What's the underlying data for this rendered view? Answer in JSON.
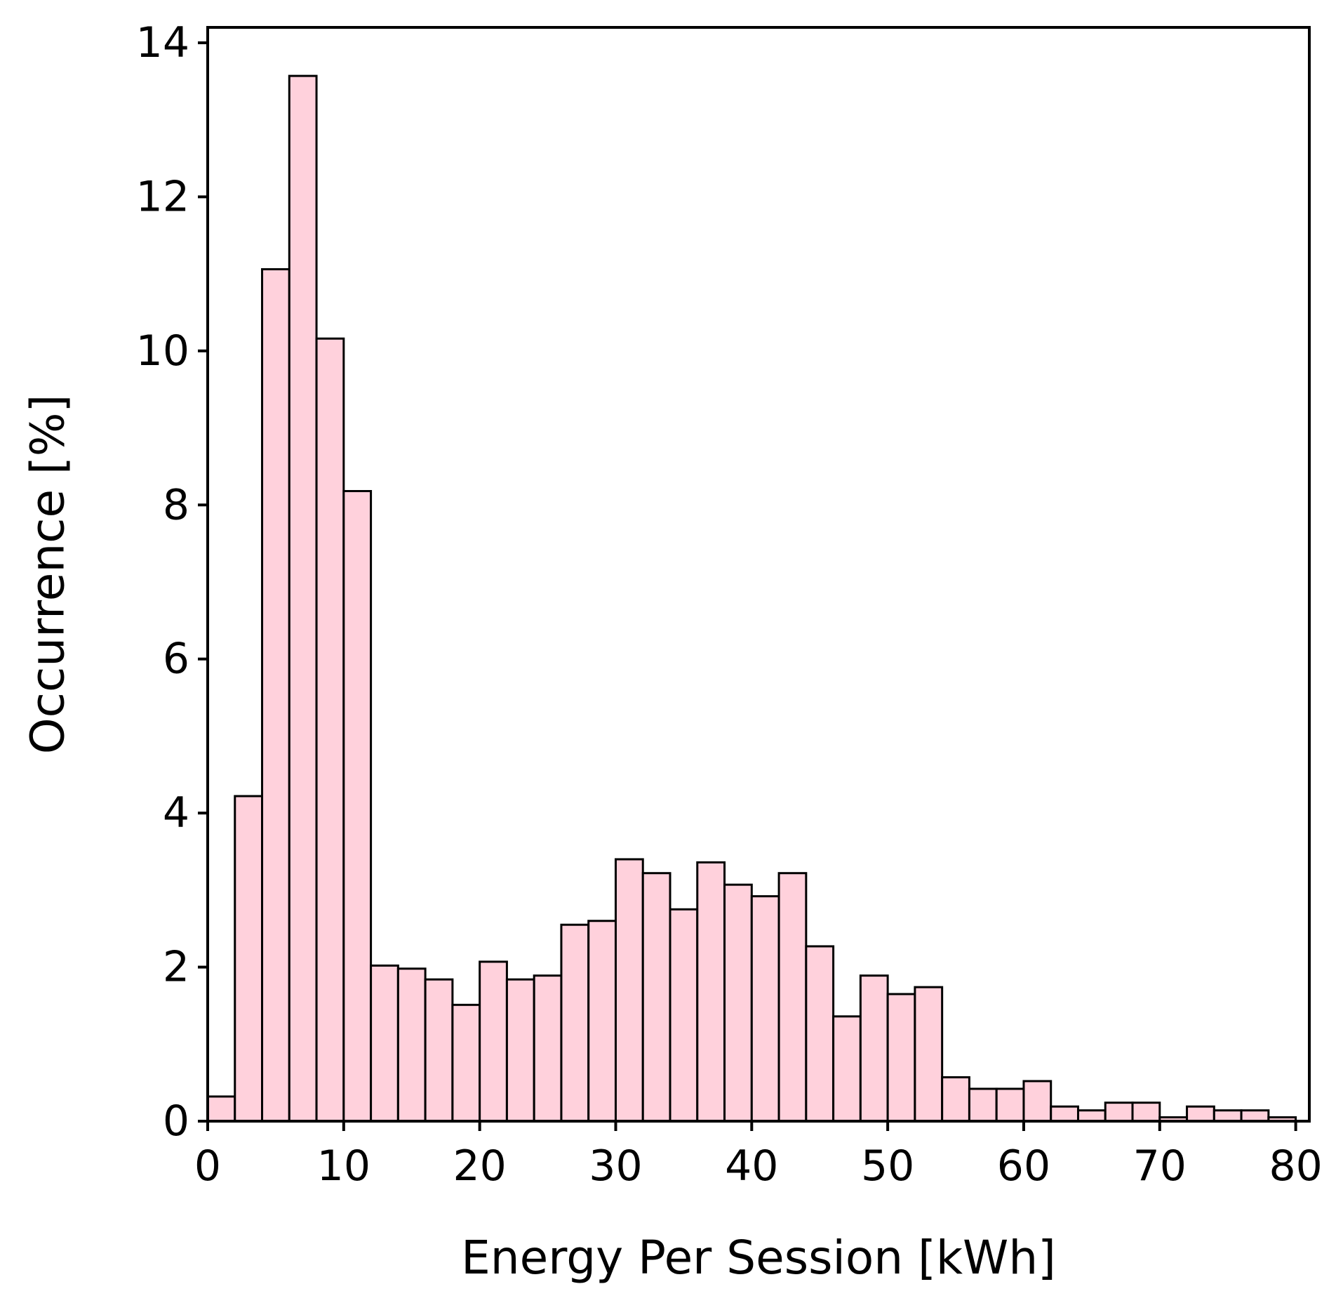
{
  "chart_data": {
    "type": "bar",
    "subtype": "histogram",
    "title": "",
    "xlabel": "Energy Per Session [kWh]",
    "ylabel": "Occurrence [%]",
    "xlim": [
      0,
      81
    ],
    "ylim": [
      0,
      14.2
    ],
    "grid": false,
    "legend": "none",
    "bar_color": "#FFD1DC",
    "edge_color": "#000000",
    "xticks": [
      0,
      10,
      20,
      30,
      40,
      50,
      60,
      70,
      80
    ],
    "yticks": [
      0,
      2,
      4,
      6,
      8,
      10,
      12,
      14
    ],
    "bin_edges": [
      0,
      2,
      4,
      6,
      8,
      10,
      12,
      14,
      16,
      18,
      20,
      22,
      24,
      26,
      28,
      30,
      32,
      34,
      36,
      38,
      40,
      42,
      44,
      46,
      48,
      50,
      52,
      54,
      56,
      58,
      60,
      62,
      64,
      66,
      68,
      70,
      72,
      74,
      76,
      78,
      80
    ],
    "values": [
      0.32,
      4.22,
      11.06,
      13.57,
      10.16,
      8.18,
      2.02,
      1.98,
      1.84,
      1.51,
      2.07,
      1.84,
      1.89,
      2.55,
      2.6,
      3.4,
      3.22,
      2.75,
      3.36,
      3.07,
      2.92,
      3.22,
      2.27,
      1.36,
      1.89,
      1.65,
      1.74,
      0.57,
      0.42,
      0.42,
      0.52,
      0.19,
      0.14,
      0.24,
      0.24,
      0.05,
      0.19,
      0.14,
      0.14,
      0.05
    ]
  }
}
